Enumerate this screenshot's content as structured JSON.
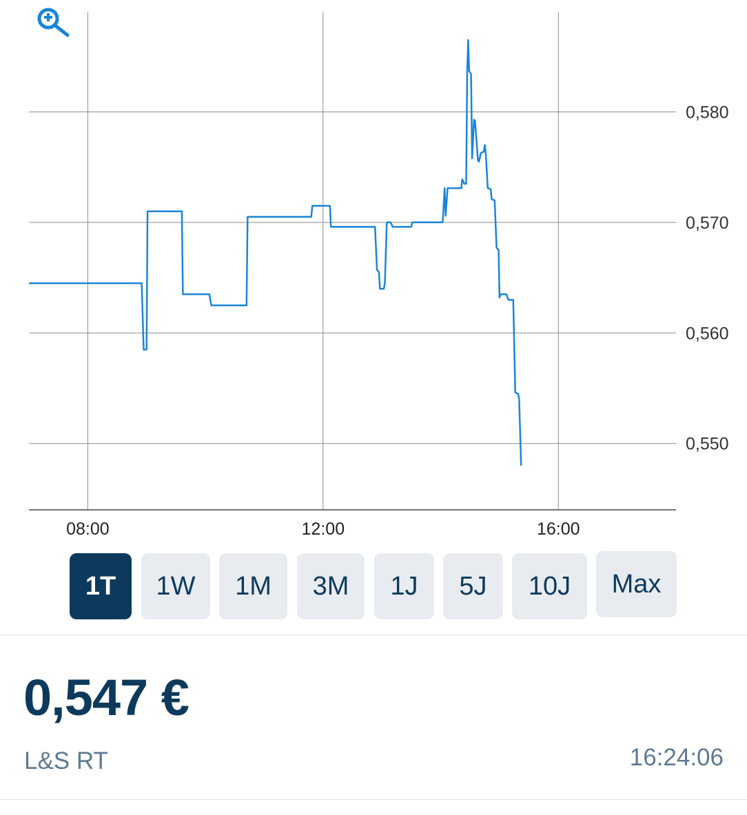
{
  "chart_data": {
    "type": "line",
    "title": "",
    "xlabel": "",
    "ylabel": "",
    "x_ticks": [
      "08:00",
      "12:00",
      "16:00"
    ],
    "y_ticks": [
      "0,580",
      "0,570",
      "0,560",
      "0,550"
    ],
    "y_tick_values": [
      0.58,
      0.57,
      0.56,
      0.55
    ],
    "xlim": [
      "07:00",
      "18:00"
    ],
    "ylim": [
      0.544,
      0.589
    ],
    "grid": true,
    "y_axis_side": "right",
    "line_color": "#1a85d6",
    "series": [
      {
        "points": [
          [
            "07:00",
            0.5645
          ],
          [
            "08:55",
            0.5645
          ],
          [
            "08:57",
            0.5585
          ],
          [
            "09:00",
            0.5585
          ],
          [
            "09:01",
            0.571
          ],
          [
            "09:36",
            0.571
          ],
          [
            "09:37",
            0.5635
          ],
          [
            "10:04",
            0.5635
          ],
          [
            "10:06",
            0.5625
          ],
          [
            "10:42",
            0.5625
          ],
          [
            "10:43",
            0.5705
          ],
          [
            "11:48",
            0.5705
          ],
          [
            "11:49",
            0.5715
          ],
          [
            "12:07",
            0.5715
          ],
          [
            "12:08",
            0.5696
          ],
          [
            "12:53",
            0.5696
          ],
          [
            "12:55",
            0.5657
          ],
          [
            "12:57",
            0.5655
          ],
          [
            "12:58",
            0.564
          ],
          [
            "13:02",
            0.564
          ],
          [
            "13:03",
            0.5645
          ],
          [
            "13:05",
            0.57
          ],
          [
            "13:09",
            0.57
          ],
          [
            "13:11",
            0.5696
          ],
          [
            "13:30",
            0.5696
          ],
          [
            "13:31",
            0.57
          ],
          [
            "14:02",
            0.57
          ],
          [
            "14:04",
            0.5731
          ],
          [
            "14:05",
            0.5706
          ],
          [
            "14:07",
            0.5731
          ],
          [
            "14:21",
            0.5731
          ],
          [
            "14:22",
            0.5739
          ],
          [
            "14:24",
            0.5735
          ],
          [
            "14:26",
            0.5735
          ],
          [
            "14:27",
            0.5837
          ],
          [
            "14:28",
            0.5865
          ],
          [
            "14:29",
            0.5837
          ],
          [
            "14:31",
            0.5834
          ],
          [
            "14:32",
            0.5758
          ],
          [
            "14:34",
            0.5793
          ],
          [
            "14:35",
            0.5792
          ],
          [
            "14:38",
            0.5756
          ],
          [
            "14:39",
            0.5755
          ],
          [
            "14:41",
            0.5763
          ],
          [
            "14:44",
            0.5764
          ],
          [
            "14:45",
            0.577
          ],
          [
            "14:46",
            0.5762
          ],
          [
            "14:48",
            0.5731
          ],
          [
            "14:51",
            0.573
          ],
          [
            "14:52",
            0.5721
          ],
          [
            "14:55",
            0.572
          ],
          [
            "14:57",
            0.5677
          ],
          [
            "14:59",
            0.5675
          ],
          [
            "15:00",
            0.5632
          ],
          [
            "15:01",
            0.5635
          ],
          [
            "15:07",
            0.5635
          ],
          [
            "15:09",
            0.563
          ],
          [
            "15:14",
            0.563
          ],
          [
            "15:16",
            0.5546
          ],
          [
            "15:19",
            0.5545
          ],
          [
            "15:20",
            0.554
          ],
          [
            "15:22",
            0.548
          ]
        ]
      }
    ]
  },
  "toolbar": {
    "zoom_icon": "zoom-in-icon"
  },
  "ranges": [
    {
      "label": "1T",
      "active": true
    },
    {
      "label": "1W"
    },
    {
      "label": "1M"
    },
    {
      "label": "3M"
    },
    {
      "label": "1J"
    },
    {
      "label": "5J"
    },
    {
      "label": "10J"
    },
    {
      "label": "Max"
    }
  ],
  "quote": {
    "price": "0,547 €",
    "exchange": "L&S RT",
    "time": "16:24:06"
  },
  "colors": {
    "accent": "#0d3a5c",
    "line": "#1a85d6",
    "muted": "#5f7a90",
    "button_bg": "#e8ecf0"
  }
}
